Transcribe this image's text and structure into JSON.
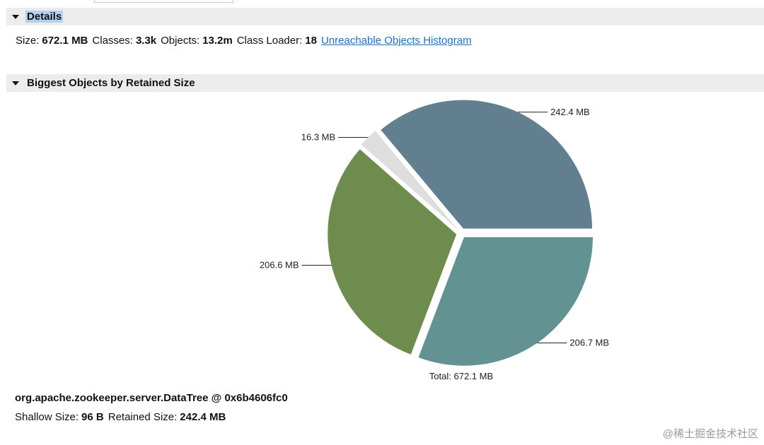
{
  "details": {
    "header": "Details",
    "size_label": "Size:",
    "size_value": "672.1 MB",
    "classes_label": "Classes:",
    "classes_value": "3.3k",
    "objects_label": "Objects:",
    "objects_value": "13.2m",
    "class_loader_label": "Class Loader:",
    "class_loader_value": "18",
    "histogram_link": "Unreachable Objects Histogram"
  },
  "biggest": {
    "header": "Biggest Objects by Retained Size"
  },
  "chart_data": {
    "type": "pie",
    "slices": [
      {
        "label": "242.4 MB",
        "value": 242.4,
        "color": "#617f8f"
      },
      {
        "label": "16.3 MB",
        "value": 16.3,
        "color": "#dedede"
      },
      {
        "label": "206.6 MB",
        "value": 206.6,
        "color": "#6e8c4e"
      },
      {
        "label": "206.7 MB",
        "value": 206.7,
        "color": "#629392"
      }
    ],
    "total_label": "Total: 672.1 MB",
    "total": 672.1
  },
  "selected_object": {
    "name": "org.apache.zookeeper.server.DataTree @ 0x6b4606fc0",
    "shallow_label": "Shallow Size:",
    "shallow_value": "96 B",
    "retained_label": "Retained Size:",
    "retained_value": "242.4 MB"
  },
  "watermark": "@稀土掘金技术社区"
}
